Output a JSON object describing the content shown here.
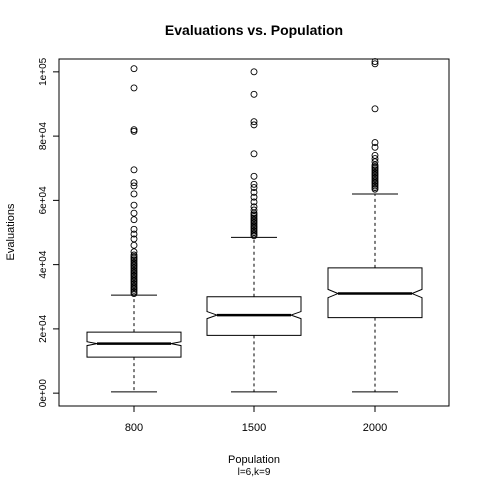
{
  "chart_data": {
    "type": "boxplot",
    "title": "Evaluations vs. Population",
    "xlabel": "Population",
    "subtitle": "l=6,k=9",
    "ylabel": "Evaluations",
    "ylim": [
      -4000,
      104000
    ],
    "y_ticks": [
      0,
      20000,
      40000,
      60000,
      80000,
      100000
    ],
    "y_tick_labels": [
      "0e+00",
      "2e+04",
      "4e+04",
      "6e+04",
      "8e+04",
      "1e+05"
    ],
    "categories": [
      "800",
      "1500",
      "2000"
    ],
    "notched": true,
    "boxes": [
      {
        "name": "800",
        "whisker_low": 400,
        "q1": 11200,
        "median": 15400,
        "q3": 19000,
        "whisker_high": 30500,
        "notch": [
          14800,
          16000
        ],
        "outliers": [
          101000,
          95000,
          82000,
          81500,
          69500,
          65500,
          64500,
          62000,
          58500,
          56000,
          54000,
          51000,
          49500,
          48000,
          46000,
          44000,
          43000,
          42500,
          42000,
          41500,
          41000,
          40500,
          40000,
          39500,
          39000,
          38500,
          38000,
          37500,
          37000,
          36500,
          36000,
          35500,
          35000,
          34500,
          34000,
          33500,
          33000,
          32500,
          32000,
          31500,
          31000
        ]
      },
      {
        "name": "1500",
        "whisker_low": 400,
        "q1": 18000,
        "median": 24300,
        "q3": 30000,
        "whisker_high": 48500,
        "notch": [
          23200,
          25400
        ],
        "outliers": [
          100000,
          93000,
          84500,
          83500,
          74500,
          67500,
          65000,
          64000,
          62500,
          61000,
          59500,
          58000,
          57000,
          56000,
          55500,
          55000,
          54500,
          54000,
          53500,
          53000,
          52500,
          52000,
          51500,
          51000,
          50500,
          50000,
          49500,
          49000
        ]
      },
      {
        "name": "2000",
        "whisker_low": 400,
        "q1": 23500,
        "median": 31000,
        "q3": 39000,
        "whisker_high": 62000,
        "notch": [
          29700,
          32300
        ],
        "outliers": [
          103200,
          102500,
          88500,
          78000,
          76500,
          74000,
          73000,
          72000,
          71000,
          70500,
          70000,
          69500,
          69000,
          68500,
          68000,
          67500,
          67000,
          66500,
          66000,
          65500,
          65000,
          64500,
          64000,
          63500
        ]
      }
    ]
  }
}
